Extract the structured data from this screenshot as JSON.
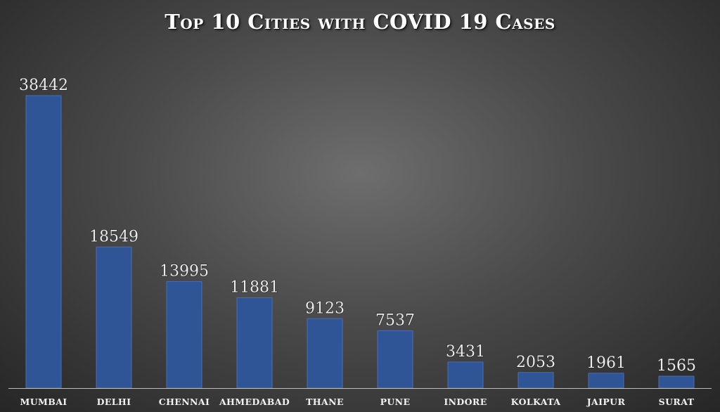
{
  "chart_data": {
    "type": "bar",
    "title": "Top 10 Cities with COVID 19 Cases",
    "xlabel": "",
    "ylabel": "",
    "categories": [
      "MUMBAI",
      "DELHI",
      "CHENNAI",
      "AHMEDABAD",
      "THANE",
      "PUNE",
      "INDORE",
      "KOLKATA",
      "JAIPUR",
      "SURAT"
    ],
    "values": [
      38442,
      18549,
      13995,
      11881,
      9123,
      7537,
      3431,
      2053,
      1961,
      1565
    ],
    "ylim": [
      0,
      41000
    ],
    "grid": false,
    "legend": "none",
    "bar_color": "#2f5597",
    "background": "#3a3a3a"
  }
}
